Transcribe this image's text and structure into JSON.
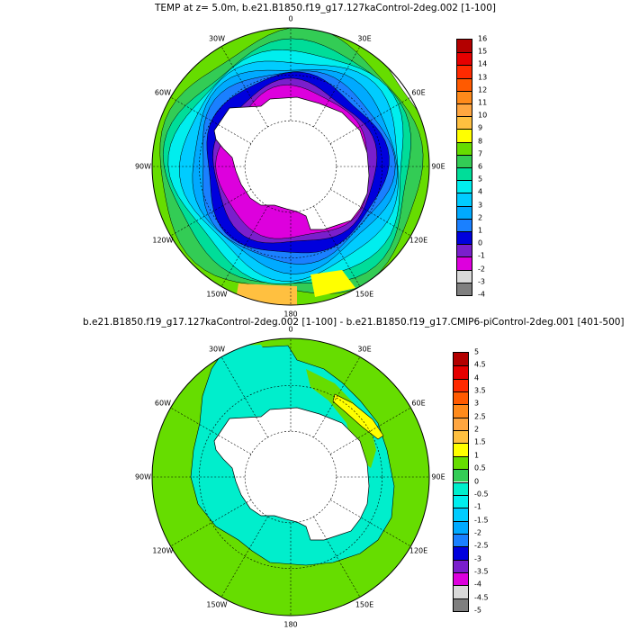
{
  "panels": [
    {
      "title": "TEMP at z=   5.0m, b.e21.B1850.f19_g17.127kaControl-2deg.002 [1-100]",
      "lon_labels": [
        "0",
        "30E",
        "60E",
        "90E",
        "120E",
        "150E",
        "180",
        "150W",
        "120W",
        "90W",
        "60W",
        "30W"
      ],
      "colorbar": {
        "labels": [
          "16",
          "15",
          "14",
          "13",
          "12",
          "11",
          "10",
          "9",
          "8",
          "7",
          "6",
          "5",
          "4",
          "3",
          "2",
          "1",
          "0",
          "-1",
          "-2",
          "-3",
          "-4"
        ],
        "colors": [
          "#b30000",
          "#e60000",
          "#ff2a00",
          "#ff5a00",
          "#ff8a1a",
          "#ffa640",
          "#ffc040",
          "#ffff00",
          "#66dd00",
          "#33cc55",
          "#00dd99",
          "#00eeee",
          "#00ccff",
          "#00aaff",
          "#1a80ff",
          "#0000dd",
          "#7a1fcc",
          "#dd00dd",
          "#d9d9d9",
          "#7f7f7f"
        ]
      },
      "rings": [
        {
          "color": "#66dd00",
          "r": 1.0
        },
        {
          "color": "#33cc55",
          "r": 0.9
        },
        {
          "color": "#00dd99",
          "r": 0.84
        },
        {
          "color": "#00eeee",
          "r": 0.8
        },
        {
          "color": "#00ccff",
          "r": 0.75
        },
        {
          "color": "#00aaff",
          "r": 0.7
        },
        {
          "color": "#1a80ff",
          "r": 0.66
        },
        {
          "color": "#0000dd",
          "r": 0.62
        },
        {
          "color": "#7a1fcc",
          "r": 0.56
        },
        {
          "color": "#dd00dd",
          "r": 0.52
        }
      ]
    },
    {
      "title": "b.e21.B1850.f19_g17.127kaControl-2deg.002 [1-100] - b.e21.B1850.f19_g17.CMIP6-piControl-2deg.001 [401-500]",
      "lon_labels": [
        "0",
        "30E",
        "60E",
        "90E",
        "120E",
        "150E",
        "180",
        "150W",
        "120W",
        "90W",
        "60W",
        "30W"
      ],
      "colorbar": {
        "labels": [
          "5",
          "4.5",
          "4",
          "3.5",
          "3",
          "2.5",
          "2",
          "1.5",
          "1",
          "0.5",
          "0",
          "-0.5",
          "-1",
          "-1.5",
          "-2",
          "-2.5",
          "-3",
          "-3.5",
          "-4",
          "-4.5",
          "-5"
        ],
        "colors": [
          "#b30000",
          "#e60000",
          "#ff2a00",
          "#ff5a00",
          "#ff8a1a",
          "#ffa640",
          "#ffc040",
          "#ffff00",
          "#66dd00",
          "#33cc55",
          "#00eecc",
          "#00eeee",
          "#00ccff",
          "#00aaff",
          "#1a80ff",
          "#0000dd",
          "#7a1fcc",
          "#dd00dd",
          "#d9d9d9",
          "#7f7f7f"
        ]
      }
    }
  ]
}
